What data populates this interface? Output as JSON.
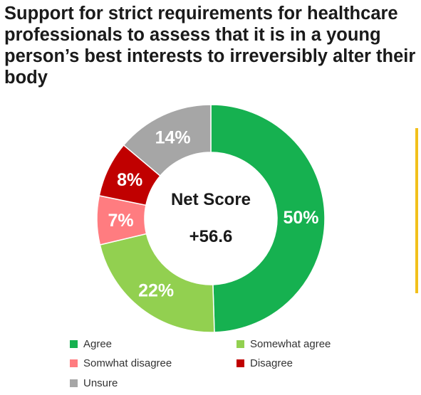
{
  "chart_data": {
    "type": "pie",
    "style": "donut",
    "title": "Support for strict requirements for healthcare professionals to assess that it is in a young person’s best interests to irreversibly alter their body",
    "center_label": "Net Score",
    "center_value": "+56.6",
    "categories": [
      "Agree",
      "Somewhat agree",
      "Somwhat disagree",
      "Disagree",
      "Unsure"
    ],
    "values": [
      50,
      22,
      7,
      8,
      14
    ],
    "value_labels": [
      "50%",
      "22%",
      "7%",
      "8%",
      "14%"
    ],
    "colors": [
      "#16B150",
      "#92D050",
      "#FF7C80",
      "#C00000",
      "#A6A6A6"
    ],
    "legend_position": "bottom",
    "accent_color": "#F2C01B"
  }
}
